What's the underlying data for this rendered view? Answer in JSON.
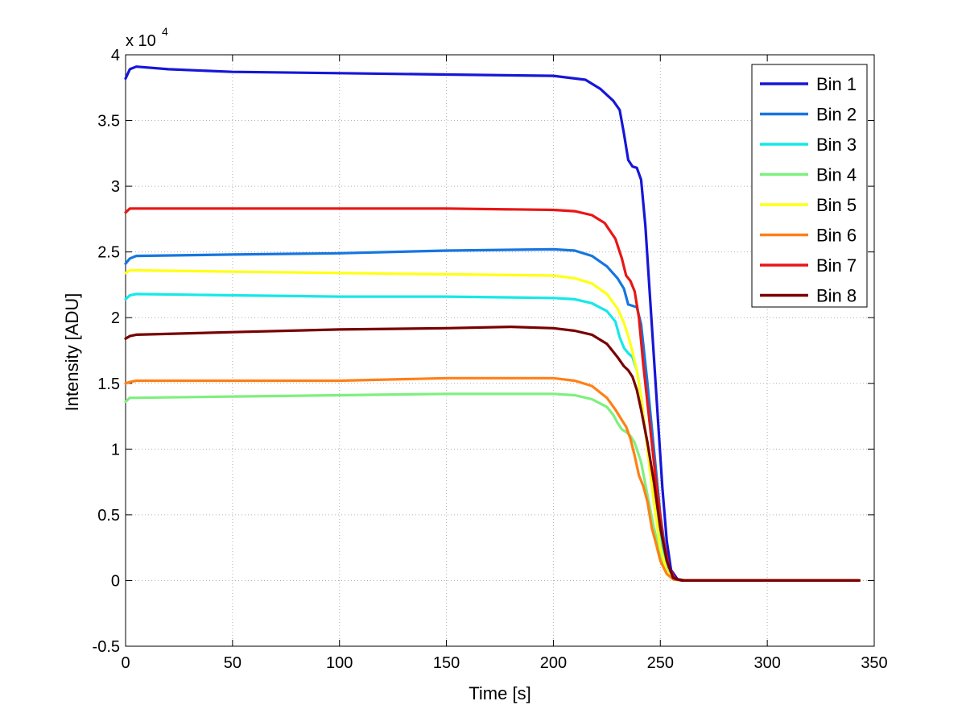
{
  "chart_data": {
    "type": "line",
    "title": "",
    "xlabel": "Time [s]",
    "ylabel": "Intensity [ADU]",
    "xlim": [
      0,
      350
    ],
    "ylim": [
      -5000,
      40000
    ],
    "x_ticks": [
      0,
      50,
      100,
      150,
      200,
      250,
      300,
      350
    ],
    "y_ticks": [
      -5000,
      0,
      5000,
      10000,
      15000,
      20000,
      25000,
      30000,
      35000,
      40000
    ],
    "y_tick_labels": [
      "-0.5",
      "0",
      "0.5",
      "1",
      "1.5",
      "2",
      "2.5",
      "3",
      "3.5",
      "4"
    ],
    "y_exponent_base": "x 10",
    "y_exponent_power": "4",
    "grid": true,
    "legend_position": "top-right",
    "series": [
      {
        "name": "Bin 1",
        "color": "#1616d8",
        "x": [
          0,
          2,
          5,
          20,
          50,
          100,
          150,
          200,
          215,
          222,
          228,
          231,
          233,
          235,
          237,
          239,
          241,
          243,
          245,
          247,
          249,
          251,
          253,
          255,
          258,
          262,
          280,
          343
        ],
        "y": [
          38200,
          38900,
          39100,
          38900,
          38700,
          38600,
          38500,
          38400,
          38100,
          37400,
          36500,
          35800,
          34000,
          32000,
          31500,
          31400,
          30500,
          27000,
          22000,
          17000,
          12000,
          7000,
          3000,
          800,
          100,
          0,
          0,
          0
        ]
      },
      {
        "name": "Bin 2",
        "color": "#1676e0",
        "x": [
          0,
          2,
          5,
          50,
          100,
          150,
          200,
          210,
          218,
          225,
          230,
          233,
          235,
          237,
          239,
          241,
          244,
          247,
          250,
          253,
          256,
          260,
          280,
          343
        ],
        "y": [
          24100,
          24500,
          24700,
          24800,
          24900,
          25100,
          25200,
          25100,
          24700,
          23900,
          23000,
          22200,
          21000,
          20900,
          20800,
          19500,
          15000,
          10000,
          5000,
          1500,
          200,
          0,
          0,
          0
        ]
      },
      {
        "name": "Bin 3",
        "color": "#16e8e8",
        "x": [
          0,
          2,
          5,
          50,
          100,
          150,
          200,
          210,
          218,
          225,
          229,
          231,
          233,
          235,
          237,
          239,
          241,
          244,
          247,
          250,
          253,
          256,
          260,
          280,
          343
        ],
        "y": [
          21400,
          21700,
          21800,
          21700,
          21600,
          21600,
          21500,
          21400,
          21100,
          20500,
          19700,
          18500,
          17700,
          17300,
          17000,
          16000,
          14000,
          10000,
          6000,
          3000,
          800,
          100,
          0,
          0,
          0
        ]
      },
      {
        "name": "Bin 4",
        "color": "#7ef07e",
        "x": [
          0,
          2,
          5,
          50,
          100,
          150,
          200,
          210,
          218,
          225,
          228,
          230,
          232,
          234,
          236,
          238,
          241,
          244,
          247,
          250,
          253,
          256,
          260,
          280,
          343
        ],
        "y": [
          13600,
          13900,
          13900,
          14000,
          14100,
          14200,
          14200,
          14100,
          13800,
          13200,
          12600,
          12000,
          11500,
          11300,
          11000,
          10500,
          9000,
          6500,
          4000,
          2000,
          600,
          100,
          0,
          0,
          0
        ]
      },
      {
        "name": "Bin 5",
        "color": "#ffff16",
        "x": [
          0,
          2,
          5,
          50,
          100,
          150,
          200,
          210,
          218,
          225,
          230,
          233,
          235,
          237,
          239,
          241,
          244,
          247,
          250,
          253,
          256,
          260,
          280,
          343
        ],
        "y": [
          23400,
          23600,
          23600,
          23500,
          23400,
          23300,
          23200,
          23000,
          22600,
          21800,
          20700,
          19600,
          18600,
          17400,
          16000,
          14000,
          10000,
          6000,
          2500,
          700,
          100,
          0,
          0,
          0
        ]
      },
      {
        "name": "Bin 6",
        "color": "#ff8016",
        "x": [
          0,
          2,
          5,
          50,
          100,
          150,
          200,
          210,
          218,
          225,
          229,
          232,
          234,
          236,
          238,
          240,
          242,
          244,
          246,
          248,
          250,
          253,
          256,
          260,
          280,
          343
        ],
        "y": [
          15000,
          15100,
          15200,
          15200,
          15200,
          15400,
          15400,
          15200,
          14800,
          13900,
          13000,
          12200,
          11700,
          10800,
          9500,
          8000,
          7200,
          6000,
          4000,
          2800,
          1500,
          500,
          100,
          0,
          0,
          0
        ]
      },
      {
        "name": "Bin 7",
        "color": "#e81616",
        "x": [
          0,
          2,
          5,
          50,
          100,
          150,
          200,
          210,
          218,
          224,
          229,
          232,
          234,
          236,
          238,
          240,
          242,
          245,
          248,
          251,
          254,
          257,
          261,
          280,
          343
        ],
        "y": [
          28000,
          28300,
          28300,
          28300,
          28300,
          28300,
          28200,
          28100,
          27800,
          27200,
          26000,
          24500,
          23200,
          22800,
          22000,
          20000,
          16500,
          12000,
          7500,
          3500,
          1000,
          100,
          0,
          0,
          0
        ]
      },
      {
        "name": "Bin 8",
        "color": "#780000",
        "x": [
          0,
          2,
          5,
          50,
          100,
          150,
          180,
          200,
          210,
          218,
          225,
          230,
          233,
          235,
          237,
          239,
          241,
          244,
          247,
          250,
          253,
          256,
          260,
          280,
          343
        ],
        "y": [
          18400,
          18600,
          18700,
          18900,
          19100,
          19200,
          19300,
          19200,
          19000,
          18700,
          18000,
          17000,
          16300,
          16000,
          15500,
          14500,
          13000,
          10500,
          7500,
          4000,
          1500,
          200,
          0,
          0,
          0
        ]
      }
    ]
  }
}
